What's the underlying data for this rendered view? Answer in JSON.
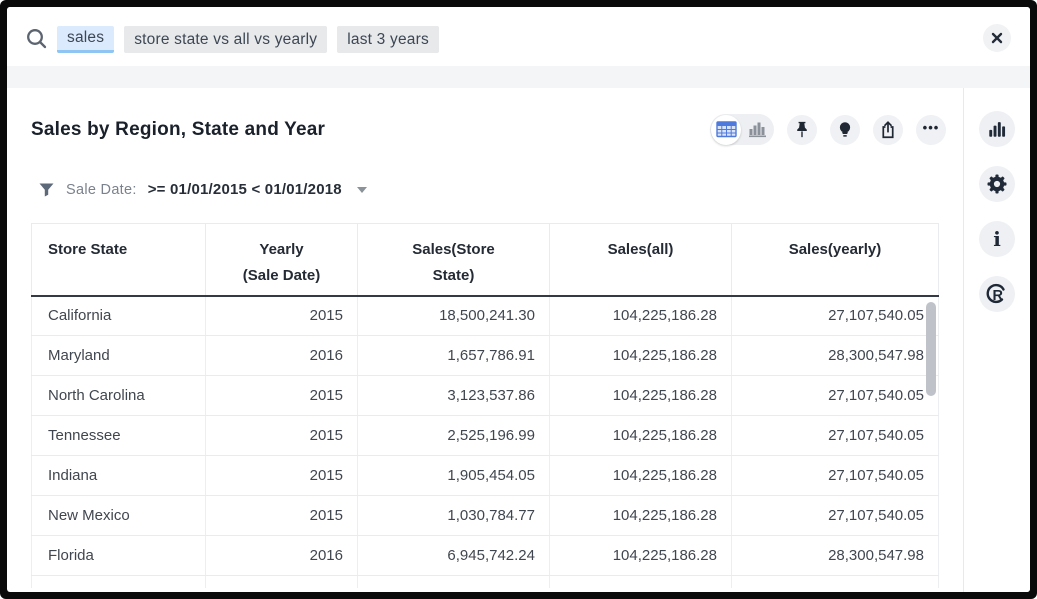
{
  "search": {
    "tokens": [
      {
        "text": "sales",
        "state": "selected"
      },
      {
        "text": "store state vs all vs yearly",
        "state": "default"
      },
      {
        "text": "last 3 years",
        "state": "default"
      }
    ],
    "close_icon": "close-icon"
  },
  "answer": {
    "title": "Sales by Region, State and Year",
    "view_toggle": {
      "options": [
        "table-view",
        "chart-view"
      ],
      "selected": "table-view"
    },
    "actions": [
      "pin",
      "insights",
      "share",
      "more-options"
    ],
    "more_label": "•••"
  },
  "filter": {
    "label": "Sale Date:",
    "value": ">= 01/01/2015 < 01/01/2018"
  },
  "table": {
    "columns": [
      {
        "lines": [
          "Store State"
        ]
      },
      {
        "lines": [
          "Yearly",
          "(Sale Date)"
        ]
      },
      {
        "lines": [
          "Sales(Store",
          "State)"
        ]
      },
      {
        "lines": [
          "Sales(all)"
        ]
      },
      {
        "lines": [
          "Sales(yearly)"
        ]
      }
    ],
    "rows": [
      [
        "California",
        "2015",
        "18,500,241.30",
        "104,225,186.28",
        "27,107,540.05"
      ],
      [
        "Maryland",
        "2016",
        "1,657,786.91",
        "104,225,186.28",
        "28,300,547.98"
      ],
      [
        "North Carolina",
        "2015",
        "3,123,537.86",
        "104,225,186.28",
        "27,107,540.05"
      ],
      [
        "Tennessee",
        "2015",
        "2,525,196.99",
        "104,225,186.28",
        "27,107,540.05"
      ],
      [
        "Indiana",
        "2015",
        "1,905,454.05",
        "104,225,186.28",
        "27,107,540.05"
      ],
      [
        "New Mexico",
        "2015",
        "1,030,784.77",
        "104,225,186.28",
        "27,107,540.05"
      ],
      [
        "Florida",
        "2016",
        "6,945,742.24",
        "104,225,186.28",
        "28,300,547.98"
      ]
    ]
  },
  "sidebar": {
    "items": [
      "chart-options",
      "settings",
      "info",
      "r-analysis"
    ]
  },
  "colors": {
    "accent_blue": "#4f79da",
    "token_selected_bg": "#dbeafd",
    "token_selected_underline": "#8fc5f2",
    "token_bg": "#e8e9eb",
    "header_border_dark": "#333a46",
    "icon_dark": "#1f2733",
    "strip_gray": "#f4f5f7"
  }
}
